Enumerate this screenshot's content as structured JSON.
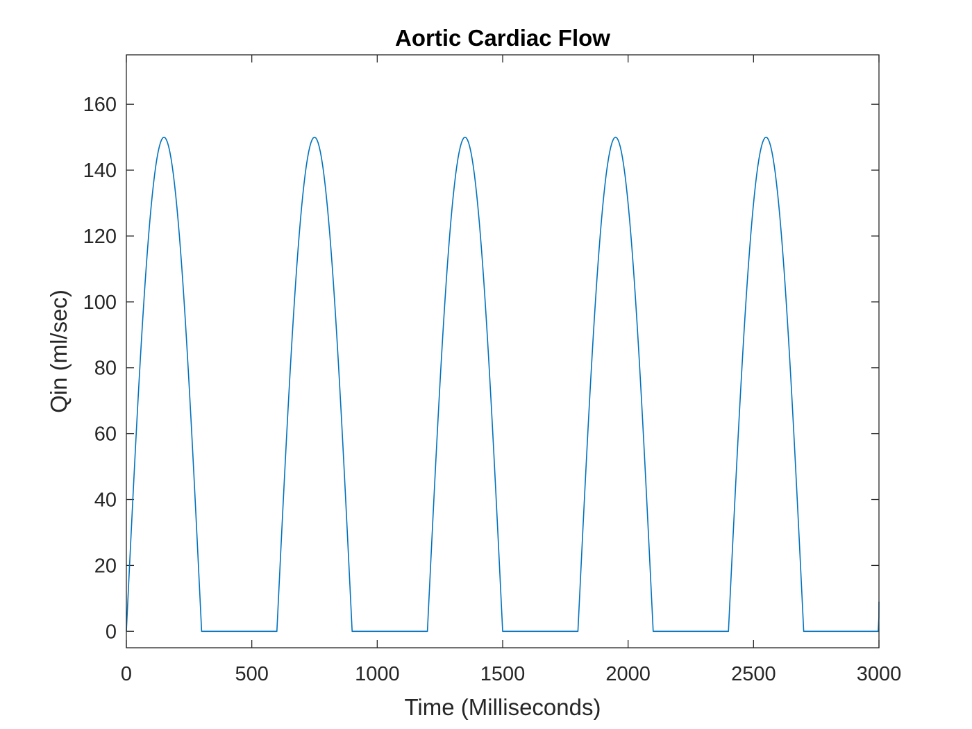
{
  "chart_data": {
    "type": "line",
    "title": "Aortic Cardiac Flow",
    "xlabel": "Time (Milliseconds)",
    "ylabel": "Qin (ml/sec)",
    "xlim": [
      0,
      3000
    ],
    "ylim": [
      -5,
      175
    ],
    "xticks": [
      0,
      500,
      1000,
      1500,
      2000,
      2500,
      3000
    ],
    "yticks": [
      0,
      20,
      40,
      60,
      80,
      100,
      120,
      140,
      160
    ],
    "grid": false,
    "series": [
      {
        "color": "#0072BD",
        "x": [
          0,
          37.5,
          75,
          112.5,
          150,
          187.5,
          225,
          262.5,
          300,
          600,
          637.5,
          675,
          712.5,
          750,
          787.5,
          825,
          862.5,
          900,
          1200,
          1237.5,
          1275,
          1312.5,
          1350,
          1387.5,
          1425,
          1462.5,
          1500,
          1800,
          1837.5,
          1875,
          1912.5,
          1950,
          1987.5,
          2025,
          2062.5,
          2100,
          2400,
          2437.5,
          2475,
          2512.5,
          2550,
          2587.5,
          2625,
          2662.5,
          2700,
          2997,
          3000
        ],
        "y": [
          0,
          57.4,
          106.1,
          138.6,
          150,
          138.6,
          106.1,
          57.4,
          0,
          0,
          57.4,
          106.1,
          138.6,
          150,
          138.6,
          106.1,
          57.4,
          0,
          0,
          57.4,
          106.1,
          138.6,
          150,
          138.6,
          106.1,
          57.4,
          0,
          0,
          57.4,
          106.1,
          138.6,
          150,
          138.6,
          106.1,
          57.4,
          0,
          0,
          57.4,
          106.1,
          138.6,
          150,
          138.6,
          106.1,
          57.4,
          0,
          0,
          9
        ]
      }
    ]
  }
}
